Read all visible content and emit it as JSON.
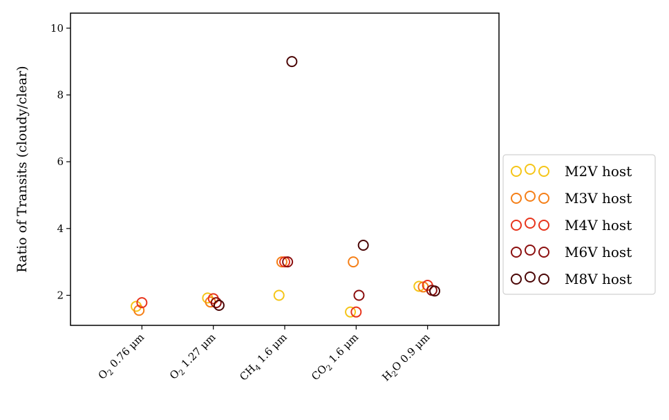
{
  "chart_data": {
    "type": "scatter",
    "title": "",
    "xlabel": "",
    "ylabel": "Ratio of Transits (cloudy/clear)",
    "categories": [
      "O2 0.76 μm",
      "O2 1.27 μm",
      "CH4 1.6 μm",
      "CO2 1.6 μm",
      "H2O 0.9 μm"
    ],
    "category_labels": [
      {
        "main": "O",
        "sub": "2",
        "rest": " 0.76 μm"
      },
      {
        "main": "O",
        "sub": "2",
        "rest": " 1.27 μm"
      },
      {
        "main": "CH",
        "sub": "4",
        "rest": " 1.6 μm"
      },
      {
        "main": "CO",
        "sub": "2",
        "rest": " 1.6 μm"
      },
      {
        "main": "H",
        "sub": "2",
        "rest": "O 0.9 μm"
      }
    ],
    "yticks": [
      2,
      4,
      6,
      8,
      10
    ],
    "ylim": [
      1.1,
      10.45
    ],
    "xlim": [
      -1,
      5
    ],
    "grid": false,
    "legend_position": "center-right, outside",
    "series": [
      {
        "name": "M2V host",
        "color": "#f5c518",
        "points": [
          [
            -0.08,
            1.67
          ],
          [
            0.92,
            1.92
          ],
          [
            1.92,
            2.0
          ],
          [
            2.92,
            1.5
          ],
          [
            3.88,
            2.27
          ]
        ]
      },
      {
        "name": "M3V host",
        "color": "#f57f17",
        "points": [
          [
            -0.04,
            1.55
          ],
          [
            0.96,
            1.8
          ],
          [
            1.96,
            3.0
          ],
          [
            2.96,
            3.0
          ],
          [
            3.94,
            2.25
          ]
        ]
      },
      {
        "name": "M4V host",
        "color": "#e8341c",
        "points": [
          [
            0.0,
            1.78
          ],
          [
            1.0,
            1.9
          ],
          [
            2.0,
            3.0
          ],
          [
            3.0,
            1.5
          ],
          [
            4.0,
            2.3
          ]
        ]
      },
      {
        "name": "M6V host",
        "color": "#8b0e0e",
        "points": [
          [
            1.04,
            1.78
          ],
          [
            2.04,
            3.0
          ],
          [
            3.04,
            2.0
          ],
          [
            4.06,
            2.15
          ]
        ]
      },
      {
        "name": "M8V host",
        "color": "#4a0505",
        "points": [
          [
            1.08,
            1.7
          ],
          [
            2.1,
            9.0
          ],
          [
            3.1,
            3.5
          ],
          [
            4.1,
            2.13
          ]
        ]
      }
    ]
  }
}
